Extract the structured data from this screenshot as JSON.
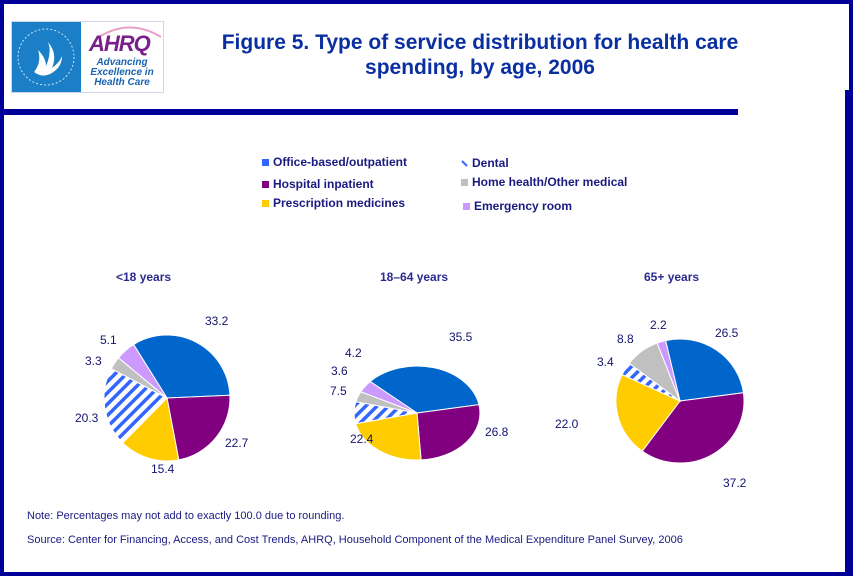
{
  "header": {
    "logo_left": "hhs-eagle-logo",
    "logo_right_mark": "AHRQ",
    "logo_right_tagline": [
      "Advancing",
      "Excellence in",
      "Health Care"
    ],
    "title_line1": "Figure 5. Type of service distribution for health care",
    "title_line2": "spending, by age, 2006"
  },
  "legend": [
    {
      "label": "Office-based/outpatient",
      "color": "#0066cc",
      "pattern": "solid"
    },
    {
      "label": "Hospital inpatient",
      "color": "#800080",
      "pattern": "solid"
    },
    {
      "label": "Prescription medicines",
      "color": "#ffcc00",
      "pattern": "solid"
    },
    {
      "label": "Dental",
      "color": "#3366ff",
      "pattern": "diagonal-stripes"
    },
    {
      "label": "Home health/Other medical",
      "color": "#c0c0c0",
      "pattern": "solid"
    },
    {
      "label": "Emergency room",
      "color": "#cc99ff",
      "pattern": "solid"
    }
  ],
  "chart_data": [
    {
      "type": "pie",
      "title": "<18 years",
      "categories": [
        "Office-based/outpatient",
        "Hospital inpatient",
        "Prescription medicines",
        "Dental",
        "Home health/Other medical",
        "Emergency room"
      ],
      "values": [
        33.2,
        22.7,
        15.4,
        20.3,
        3.3,
        5.1
      ],
      "labels": [
        "33.2",
        "22.7",
        "15.4",
        "20.3",
        "3.3",
        "5.1"
      ]
    },
    {
      "type": "pie",
      "title": "18–64 years",
      "categories": [
        "Office-based/outpatient",
        "Hospital inpatient",
        "Prescription medicines",
        "Dental",
        "Home health/Other medical",
        "Emergency room"
      ],
      "values": [
        35.5,
        26.8,
        22.4,
        7.5,
        3.6,
        4.2
      ],
      "labels": [
        "35.5",
        "26.8",
        "22.4",
        "7.5",
        "3.6",
        "4.2"
      ]
    },
    {
      "type": "pie",
      "title": "65+ years",
      "categories": [
        "Office-based/outpatient",
        "Hospital inpatient",
        "Prescription medicines",
        "Dental",
        "Home health/Other medical",
        "Emergency room"
      ],
      "values": [
        26.5,
        37.2,
        22.0,
        3.4,
        8.8,
        2.2
      ],
      "labels": [
        "26.5",
        "37.2",
        "22.0",
        "3.4",
        "8.8",
        "2.2"
      ]
    }
  ],
  "footer": {
    "note": "Note: Percentages may not add to exactly 100.0 due to rounding.",
    "source": "Source: Center for Financing, Access, and Cost Trends, AHRQ, Household Component of the Medical Expenditure Panel Survey, 2006"
  }
}
